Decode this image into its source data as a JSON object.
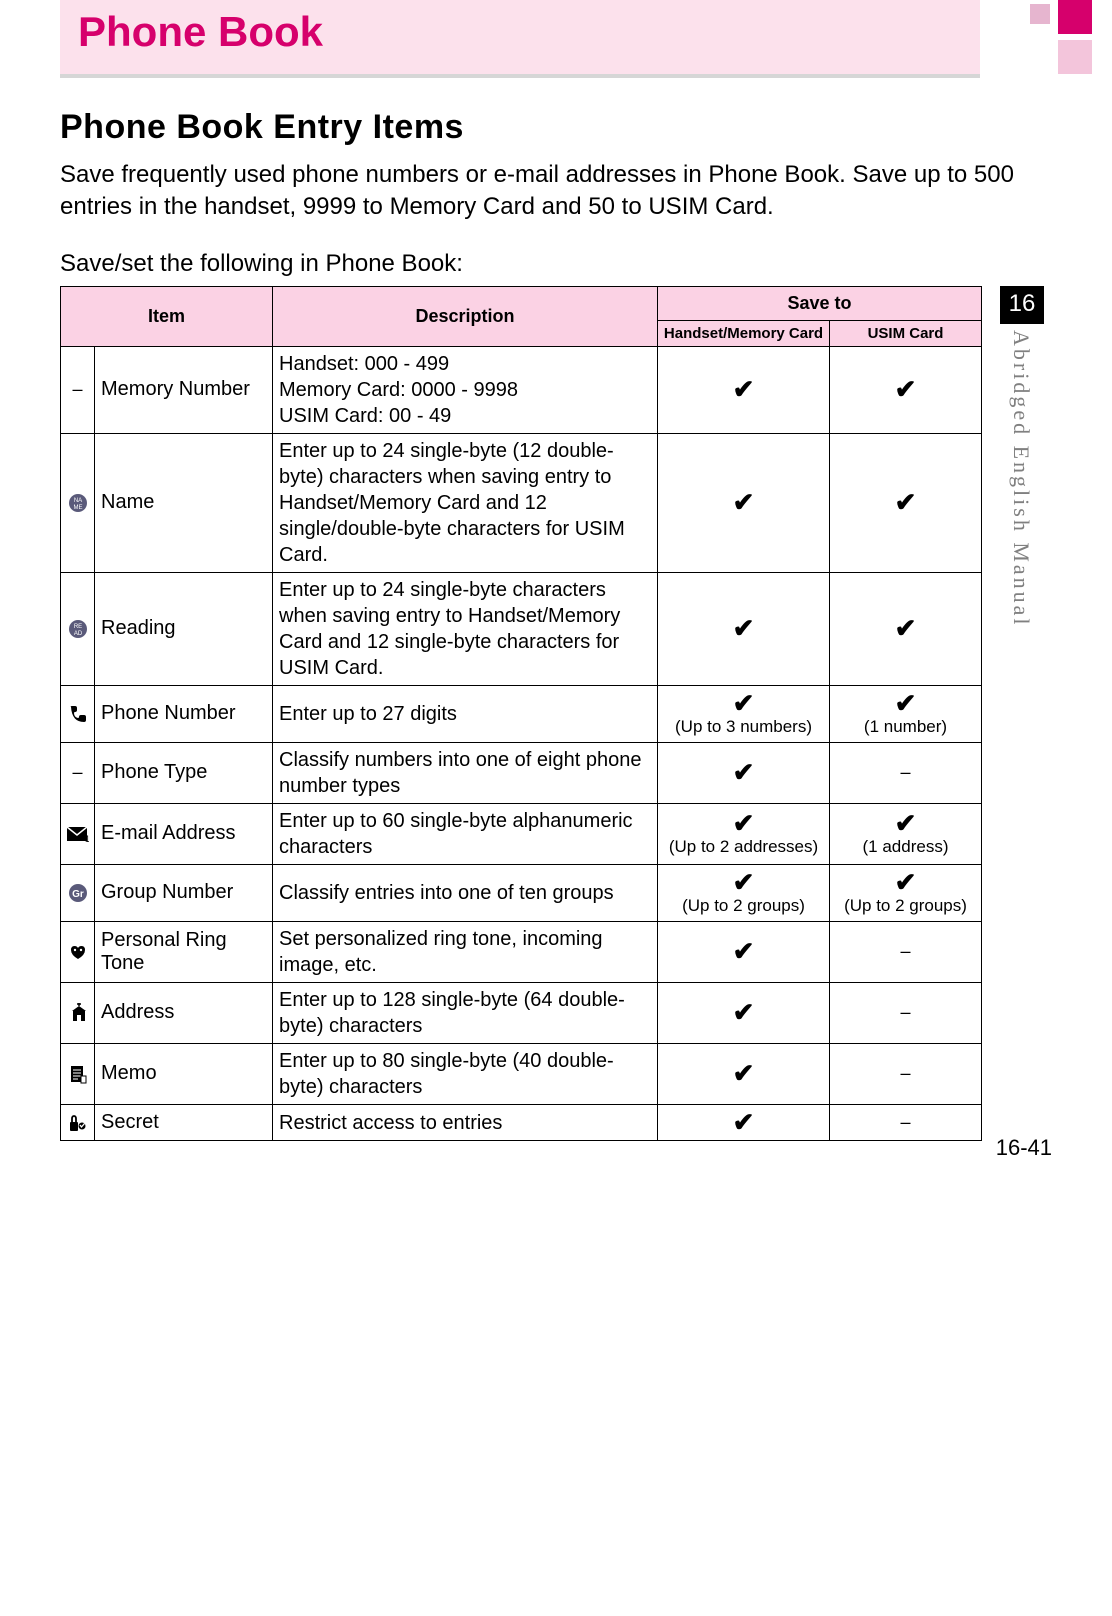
{
  "title": "Phone Book",
  "section_heading": "Phone Book Entry Items",
  "intro": "Save frequently used phone numbers or e-mail addresses in Phone Book. Save up to 500 entries in the handset, 9999 to Memory Card and 50 to USIM Card.",
  "sub_intro": "Save/set the following in Phone Book:",
  "side_tab_number": "16",
  "side_tab_label": "Abridged English Manual",
  "page_number": "16-41",
  "colors": {
    "title_band_bg": "#fce1ec",
    "title_text": "#d6006c",
    "table_header_bg": "#fbd2e4",
    "border": "#000000",
    "side_label": "#808080"
  },
  "table": {
    "headers": {
      "item": "Item",
      "description": "Description",
      "save_to": "Save to",
      "handset_memory": "Handset/Memory Card",
      "usim": "USIM Card"
    },
    "rows": [
      {
        "icon": "–",
        "icon_type": "dash",
        "item": "Memory Number",
        "description": "Handset: 000 - 499\nMemory Card: 0000 - 9998\nUSIM Card: 00 - 49",
        "handset": {
          "check": true,
          "note": ""
        },
        "usim": {
          "check": true,
          "note": ""
        }
      },
      {
        "icon": "name",
        "icon_type": "svg",
        "item": "Name",
        "description": "Enter up to 24 single-byte (12 double-byte) characters when saving entry to Handset/Memory Card and 12 single/double-byte characters for USIM Card.",
        "handset": {
          "check": true,
          "note": ""
        },
        "usim": {
          "check": true,
          "note": ""
        }
      },
      {
        "icon": "reading",
        "icon_type": "svg",
        "item": "Reading",
        "description": "Enter up to 24 single-byte characters when saving entry to Handset/Memory Card and 12 single-byte characters for USIM Card.",
        "handset": {
          "check": true,
          "note": ""
        },
        "usim": {
          "check": true,
          "note": ""
        }
      },
      {
        "icon": "phone",
        "icon_type": "svg",
        "item": "Phone Number",
        "description": "Enter up to 27 digits",
        "handset": {
          "check": true,
          "note": "(Up to 3 numbers)"
        },
        "usim": {
          "check": true,
          "note": "(1 number)"
        }
      },
      {
        "icon": "–",
        "icon_type": "dash",
        "item": "Phone Type",
        "description": "Classify numbers into one of eight phone number types",
        "handset": {
          "check": true,
          "note": ""
        },
        "usim": {
          "check": false,
          "note": "–"
        }
      },
      {
        "icon": "email",
        "icon_type": "svg",
        "item": "E-mail Address",
        "description": "Enter up to 60 single-byte alphanumeric characters",
        "handset": {
          "check": true,
          "note": "(Up to 2 addresses)"
        },
        "usim": {
          "check": true,
          "note": "(1 address)"
        }
      },
      {
        "icon": "group",
        "icon_type": "svg",
        "item": "Group Number",
        "description": "Classify entries into one of ten groups",
        "handset": {
          "check": true,
          "note": "(Up to 2 groups)"
        },
        "usim": {
          "check": true,
          "note": "(Up to 2 groups)"
        }
      },
      {
        "icon": "ring",
        "icon_type": "svg",
        "item": "Personal Ring Tone",
        "description": "Set personalized ring tone, incoming image, etc.",
        "handset": {
          "check": true,
          "note": ""
        },
        "usim": {
          "check": false,
          "note": "–"
        }
      },
      {
        "icon": "address",
        "icon_type": "svg",
        "item": "Address",
        "description": "Enter up to 128 single-byte (64 double-byte) characters",
        "handset": {
          "check": true,
          "note": ""
        },
        "usim": {
          "check": false,
          "note": "–"
        }
      },
      {
        "icon": "memo",
        "icon_type": "svg",
        "item": "Memo",
        "description": "Enter up to 80 single-byte (40 double-byte) characters",
        "handset": {
          "check": true,
          "note": ""
        },
        "usim": {
          "check": false,
          "note": "–"
        }
      },
      {
        "icon": "secret",
        "icon_type": "svg",
        "item": "Secret",
        "description": "Restrict access to entries",
        "handset": {
          "check": true,
          "note": ""
        },
        "usim": {
          "check": false,
          "note": "–"
        }
      }
    ]
  }
}
